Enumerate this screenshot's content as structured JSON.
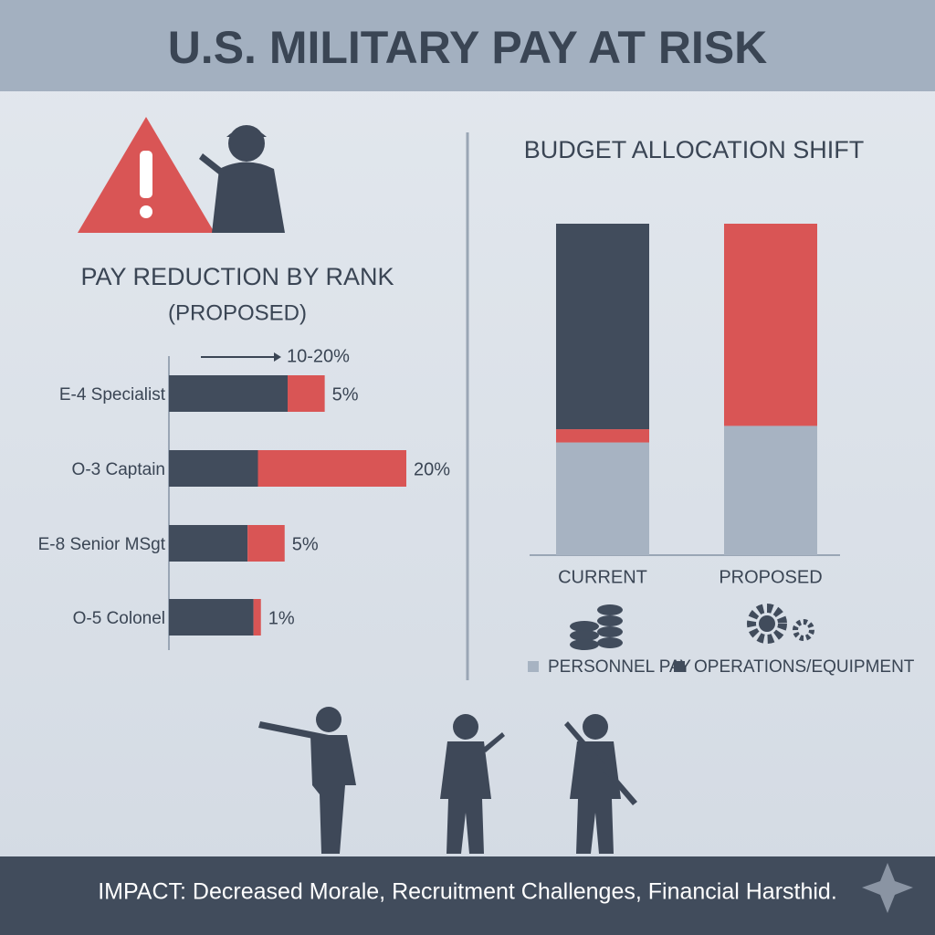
{
  "header": {
    "title": "U.S. MILITARY PAY AT RISK"
  },
  "chart_data": [
    {
      "type": "hbar",
      "title": "PAY REDUCTION BY RANK",
      "subtitle": "(PROPOSED)",
      "annotation": "10-20%",
      "categories": [
        "E-4 Specialist",
        "O-3 Captain",
        "E-8 Senior MSgt",
        "O-5 Colonel"
      ],
      "series": [
        {
          "color": "#414c5c",
          "values": [
            16,
            12,
            10.6,
            11.4
          ]
        },
        {
          "color": "#d95555",
          "values": [
            5,
            20,
            5,
            1
          ],
          "value_labels": [
            "5%",
            "20%",
            "5%",
            "1%"
          ]
        }
      ]
    },
    {
      "type": "stacked-bar",
      "title": "BUDGET ALLOCATION SHIFT",
      "categories": [
        "CURRENT",
        "PROPOSED"
      ],
      "ylim": [
        0,
        100
      ],
      "series": [
        {
          "name": "PERSONNEL PAY",
          "color": "#a7b3c2",
          "values": [
            34,
            39
          ]
        },
        {
          "color": "#d95555",
          "values": [
            4,
            61
          ]
        },
        {
          "name": "OPERATIONS/EQUIPMENT",
          "color": "#414c5c",
          "values": [
            62,
            0
          ]
        }
      ]
    }
  ],
  "footer": {
    "text": "IMPACT: Decreased Morale, Recruitment Challenges, Financial Harsthid."
  }
}
